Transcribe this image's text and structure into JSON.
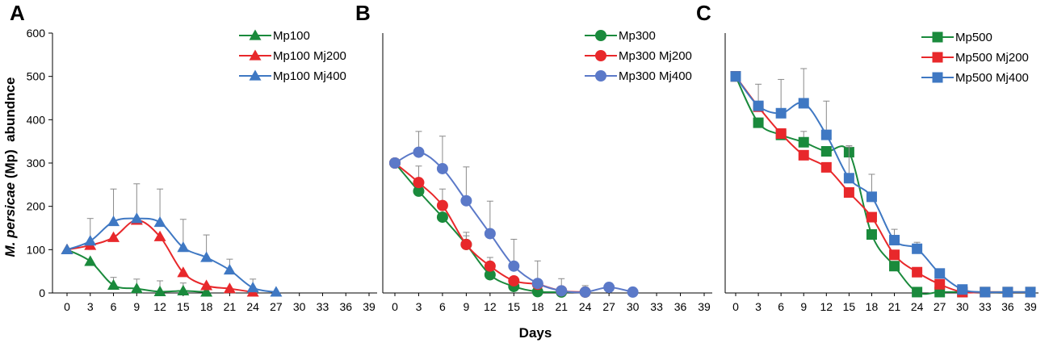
{
  "figure": {
    "xlabel": "Days",
    "ylabel_italic": "M. persicae",
    "ylabel_rest": " (Mp)  abundnce"
  },
  "chart_data": [
    {
      "panel": "A",
      "type": "line",
      "marker": "triangle",
      "ylim": [
        0,
        600
      ],
      "yticks": [
        0,
        100,
        200,
        300,
        400,
        500,
        600
      ],
      "xticks": [
        0,
        3,
        6,
        9,
        12,
        15,
        18,
        21,
        24,
        27,
        30,
        33,
        36,
        39
      ],
      "legend_position": "top-right",
      "series": [
        {
          "name": "Mp100",
          "color": "#1a8a3c",
          "x": [
            0,
            3,
            6,
            9,
            12,
            15,
            18
          ],
          "y": [
            100,
            73,
            18,
            10,
            3,
            5,
            2
          ],
          "err": [
            0,
            0,
            18,
            22,
            25,
            18,
            10
          ]
        },
        {
          "name": "Mp100 Mj200",
          "color": "#e8282b",
          "x": [
            0,
            3,
            6,
            9,
            12,
            15,
            18,
            21,
            24
          ],
          "y": [
            100,
            110,
            128,
            168,
            130,
            47,
            17,
            10,
            2
          ],
          "err": [
            0,
            0,
            0,
            0,
            0,
            0,
            0,
            0,
            0
          ]
        },
        {
          "name": "Mp100 Mj400",
          "color": "#3f78c3",
          "x": [
            0,
            3,
            6,
            9,
            12,
            15,
            18,
            21,
            24,
            27
          ],
          "y": [
            100,
            120,
            165,
            172,
            163,
            105,
            82,
            53,
            12,
            2
          ],
          "err": [
            0,
            52,
            75,
            80,
            77,
            65,
            52,
            25,
            20,
            0
          ]
        }
      ]
    },
    {
      "panel": "B",
      "type": "line",
      "marker": "circle",
      "ylim": [
        0,
        600
      ],
      "xticks": [
        0,
        3,
        6,
        9,
        12,
        15,
        18,
        21,
        24,
        27,
        30,
        33,
        36,
        39
      ],
      "legend_position": "top-right",
      "series": [
        {
          "name": "Mp300",
          "color": "#1a8a3c",
          "x": [
            0,
            3,
            6,
            9,
            12,
            15,
            18,
            21,
            24
          ],
          "y": [
            300,
            235,
            175,
            112,
            42,
            15,
            3,
            2,
            2
          ],
          "err": [
            0,
            0,
            0,
            20,
            0,
            0,
            0,
            0,
            0
          ]
        },
        {
          "name": "Mp300 Mj200",
          "color": "#e8282b",
          "x": [
            0,
            3,
            6,
            9,
            12,
            15,
            18,
            21,
            24
          ],
          "y": [
            300,
            255,
            202,
            112,
            62,
            28,
            20,
            5,
            2
          ],
          "err": [
            0,
            38,
            38,
            28,
            20,
            0,
            0,
            0,
            0
          ]
        },
        {
          "name": "Mp300 Mj400",
          "color": "#5b79c8",
          "x": [
            0,
            3,
            6,
            9,
            12,
            15,
            18,
            21,
            24,
            27,
            30
          ],
          "y": [
            300,
            325,
            287,
            213,
            137,
            62,
            22,
            5,
            2,
            13,
            2
          ],
          "err": [
            0,
            48,
            75,
            78,
            75,
            62,
            52,
            28,
            15,
            0,
            0
          ]
        }
      ]
    },
    {
      "panel": "C",
      "type": "line",
      "marker": "square",
      "ylim": [
        0,
        600
      ],
      "xticks": [
        0,
        3,
        6,
        9,
        12,
        15,
        18,
        21,
        24,
        27,
        30,
        33,
        36,
        39
      ],
      "legend_position": "top-right",
      "series": [
        {
          "name": "Mp500",
          "color": "#1a8a3c",
          "x": [
            0,
            3,
            6,
            9,
            12,
            15,
            18,
            21,
            24,
            27,
            30,
            33,
            36,
            39
          ],
          "y": [
            500,
            393,
            365,
            348,
            327,
            325,
            135,
            62,
            2,
            2,
            2,
            2,
            2,
            2
          ],
          "err": [
            0,
            0,
            0,
            25,
            0,
            15,
            0,
            0,
            0,
            0,
            0,
            0,
            0,
            0
          ]
        },
        {
          "name": "Mp500 Mj200",
          "color": "#e8282b",
          "x": [
            0,
            3,
            6,
            9,
            12,
            15,
            18,
            21,
            24,
            27,
            30,
            33,
            36,
            39
          ],
          "y": [
            500,
            430,
            368,
            318,
            290,
            232,
            175,
            88,
            48,
            20,
            2,
            2,
            2,
            2
          ],
          "err": [
            0,
            0,
            0,
            0,
            0,
            0,
            0,
            0,
            0,
            0,
            0,
            0,
            0,
            0
          ]
        },
        {
          "name": "Mp500 Mj400",
          "color": "#3f78c3",
          "x": [
            0,
            3,
            6,
            9,
            12,
            15,
            18,
            21,
            24,
            27,
            30,
            33,
            36,
            39
          ],
          "y": [
            500,
            432,
            415,
            438,
            365,
            265,
            222,
            122,
            102,
            45,
            8,
            2,
            2,
            2
          ],
          "err": [
            0,
            50,
            78,
            80,
            78,
            72,
            52,
            25,
            15,
            0,
            0,
            0,
            0,
            0
          ]
        }
      ]
    }
  ]
}
